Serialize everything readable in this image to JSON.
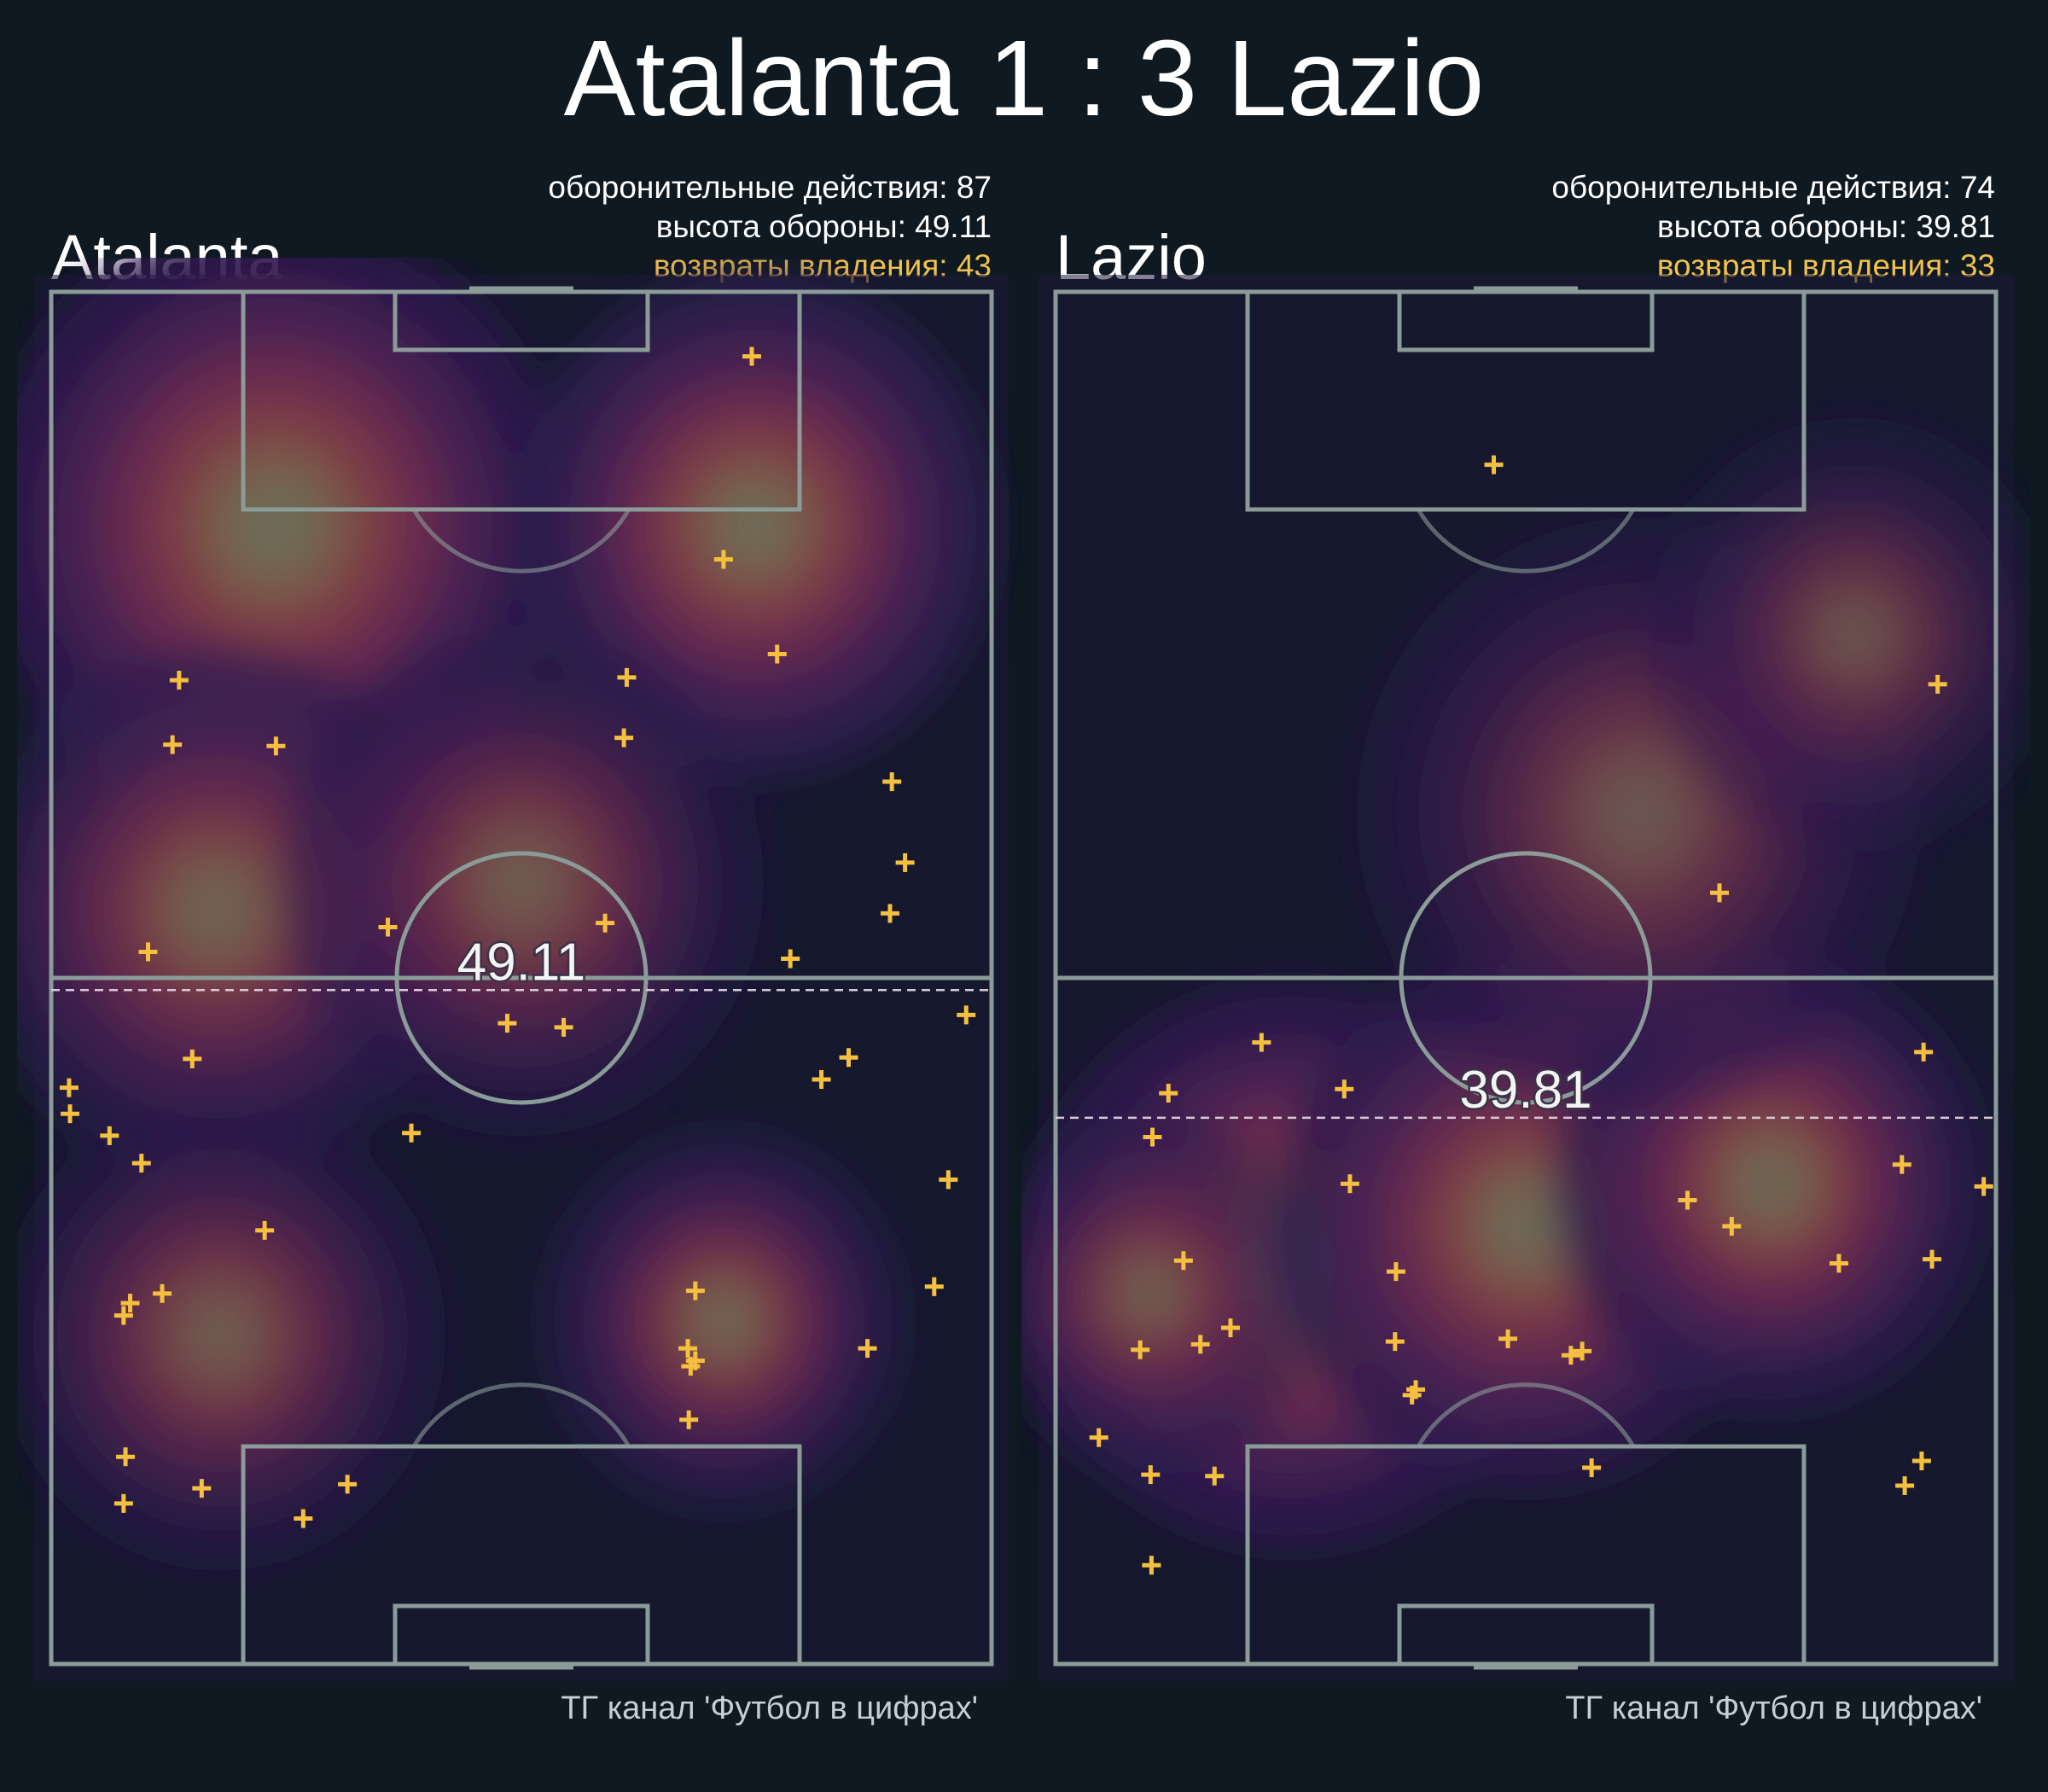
{
  "title": "Atalanta 1 : 3 Lazio",
  "colors": {
    "background": "#0e1921",
    "pitch_lines": "#8a9b98",
    "marker": "#f5c040",
    "reference_line": "#d9c8d8",
    "highlight_text": "#f2c14e"
  },
  "chart_data": [
    {
      "type": "heatmap",
      "team": "Atalanta",
      "pitch_length": 100,
      "pitch_width": 100,
      "defensive_actions_label": "оборонительные действия: 87",
      "defense_height_label": "высота обороны: 49.11",
      "recoveries_label": "возвраты владения: 43",
      "defensive_actions": 87,
      "defense_height": 49.11,
      "defense_height_label_on_pitch": "49.11",
      "recoveries": 43,
      "credit": "ТГ канал 'Футбол в цифрах'",
      "colormap": "magma",
      "density_peaks": [
        {
          "x": 23.7,
          "y": 83,
          "weight": 1.0,
          "spread": 12
        },
        {
          "x": 74.8,
          "y": 83,
          "weight": 0.95,
          "spread": 10
        },
        {
          "x": 17.5,
          "y": 55,
          "weight": 0.55,
          "spread": 13
        },
        {
          "x": 71.5,
          "y": 25,
          "weight": 0.6,
          "spread": 9
        },
        {
          "x": 50,
          "y": 57,
          "weight": 0.35,
          "spread": 14
        },
        {
          "x": 18,
          "y": 24,
          "weight": 0.35,
          "spread": 13
        }
      ],
      "recovery_points": [
        {
          "x": 74.5,
          "y": 95.3
        },
        {
          "x": 71.5,
          "y": 80.5
        },
        {
          "x": 77.2,
          "y": 73.6
        },
        {
          "x": 61.2,
          "y": 71.9
        },
        {
          "x": 60.9,
          "y": 67.5
        },
        {
          "x": 89.4,
          "y": 64.3
        },
        {
          "x": 90.8,
          "y": 58.4
        },
        {
          "x": 89.2,
          "y": 54.7
        },
        {
          "x": 78.6,
          "y": 51.4
        },
        {
          "x": 58.9,
          "y": 54.0
        },
        {
          "x": 35.8,
          "y": 53.7
        },
        {
          "x": 13.6,
          "y": 71.7
        },
        {
          "x": 12.9,
          "y": 67.0
        },
        {
          "x": 23.9,
          "y": 66.9
        },
        {
          "x": 10.3,
          "y": 51.9
        },
        {
          "x": 97.3,
          "y": 47.3
        },
        {
          "x": 48.5,
          "y": 46.7
        },
        {
          "x": 54.5,
          "y": 46.4
        },
        {
          "x": 15.0,
          "y": 44.1
        },
        {
          "x": 84.8,
          "y": 44.2
        },
        {
          "x": 81.9,
          "y": 42.6
        },
        {
          "x": 1.9,
          "y": 42.0
        },
        {
          "x": 2.0,
          "y": 40.1
        },
        {
          "x": 6.2,
          "y": 38.5
        },
        {
          "x": 9.6,
          "y": 36.5
        },
        {
          "x": 95.4,
          "y": 35.3
        },
        {
          "x": 38.3,
          "y": 38.7
        },
        {
          "x": 22.7,
          "y": 31.6
        },
        {
          "x": 68.5,
          "y": 27.2
        },
        {
          "x": 93.9,
          "y": 27.5
        },
        {
          "x": 11.8,
          "y": 27.0
        },
        {
          "x": 8.4,
          "y": 26.3
        },
        {
          "x": 7.7,
          "y": 25.4
        },
        {
          "x": 67.7,
          "y": 23.0
        },
        {
          "x": 68.5,
          "y": 22.1
        },
        {
          "x": 68.0,
          "y": 21.7
        },
        {
          "x": 86.8,
          "y": 23.0
        },
        {
          "x": 67.8,
          "y": 17.8
        },
        {
          "x": 7.9,
          "y": 15.1
        },
        {
          "x": 16.0,
          "y": 12.8
        },
        {
          "x": 31.5,
          "y": 13.1
        },
        {
          "x": 7.7,
          "y": 11.7
        },
        {
          "x": 26.8,
          "y": 10.6
        }
      ]
    },
    {
      "type": "heatmap",
      "team": "Lazio",
      "pitch_length": 100,
      "pitch_width": 100,
      "defensive_actions_label": "оборонительные действия: 74",
      "defense_height_label": "высота обороны: 39.81",
      "recoveries_label": "возвраты владения: 33",
      "defensive_actions": 74,
      "defense_height": 39.81,
      "defense_height_label_on_pitch": "39.81",
      "recoveries": 33,
      "credit": "ТГ канал 'Футбол в цифрах'",
      "colormap": "magma",
      "density_peaks": [
        {
          "x": 25,
          "y": 29,
          "weight": 1.0,
          "spread": 11
        },
        {
          "x": 50,
          "y": 32,
          "weight": 0.85,
          "spread": 11
        },
        {
          "x": 76,
          "y": 35,
          "weight": 0.75,
          "spread": 10
        },
        {
          "x": 10,
          "y": 27,
          "weight": 0.35,
          "spread": 10
        },
        {
          "x": 62,
          "y": 62,
          "weight": 0.2,
          "spread": 18
        },
        {
          "x": 85,
          "y": 75,
          "weight": 0.12,
          "spread": 14
        }
      ],
      "recovery_points": [
        {
          "x": 46.6,
          "y": 87.4
        },
        {
          "x": 93.8,
          "y": 71.4
        },
        {
          "x": 70.6,
          "y": 56.2
        },
        {
          "x": 21.9,
          "y": 45.3
        },
        {
          "x": 92.3,
          "y": 44.6
        },
        {
          "x": 12.0,
          "y": 41.6
        },
        {
          "x": 30.7,
          "y": 41.9
        },
        {
          "x": 10.3,
          "y": 38.4
        },
        {
          "x": 90.0,
          "y": 36.4
        },
        {
          "x": 31.3,
          "y": 35.0
        },
        {
          "x": 98.7,
          "y": 34.8
        },
        {
          "x": 67.2,
          "y": 33.8
        },
        {
          "x": 71.9,
          "y": 31.9
        },
        {
          "x": 13.6,
          "y": 29.4
        },
        {
          "x": 36.2,
          "y": 28.6
        },
        {
          "x": 93.2,
          "y": 29.5
        },
        {
          "x": 83.3,
          "y": 29.2
        },
        {
          "x": 18.6,
          "y": 24.5
        },
        {
          "x": 15.4,
          "y": 23.3
        },
        {
          "x": 9.0,
          "y": 22.9
        },
        {
          "x": 36.1,
          "y": 23.5
        },
        {
          "x": 48.1,
          "y": 23.7
        },
        {
          "x": 54.8,
          "y": 22.5
        },
        {
          "x": 56.0,
          "y": 22.8
        },
        {
          "x": 38.3,
          "y": 20.0
        },
        {
          "x": 37.9,
          "y": 19.6
        },
        {
          "x": 4.6,
          "y": 16.5
        },
        {
          "x": 10.1,
          "y": 13.8
        },
        {
          "x": 16.9,
          "y": 13.7
        },
        {
          "x": 57.0,
          "y": 14.3
        },
        {
          "x": 92.1,
          "y": 14.8
        },
        {
          "x": 90.3,
          "y": 13.0
        },
        {
          "x": 10.2,
          "y": 7.2
        }
      ]
    }
  ]
}
